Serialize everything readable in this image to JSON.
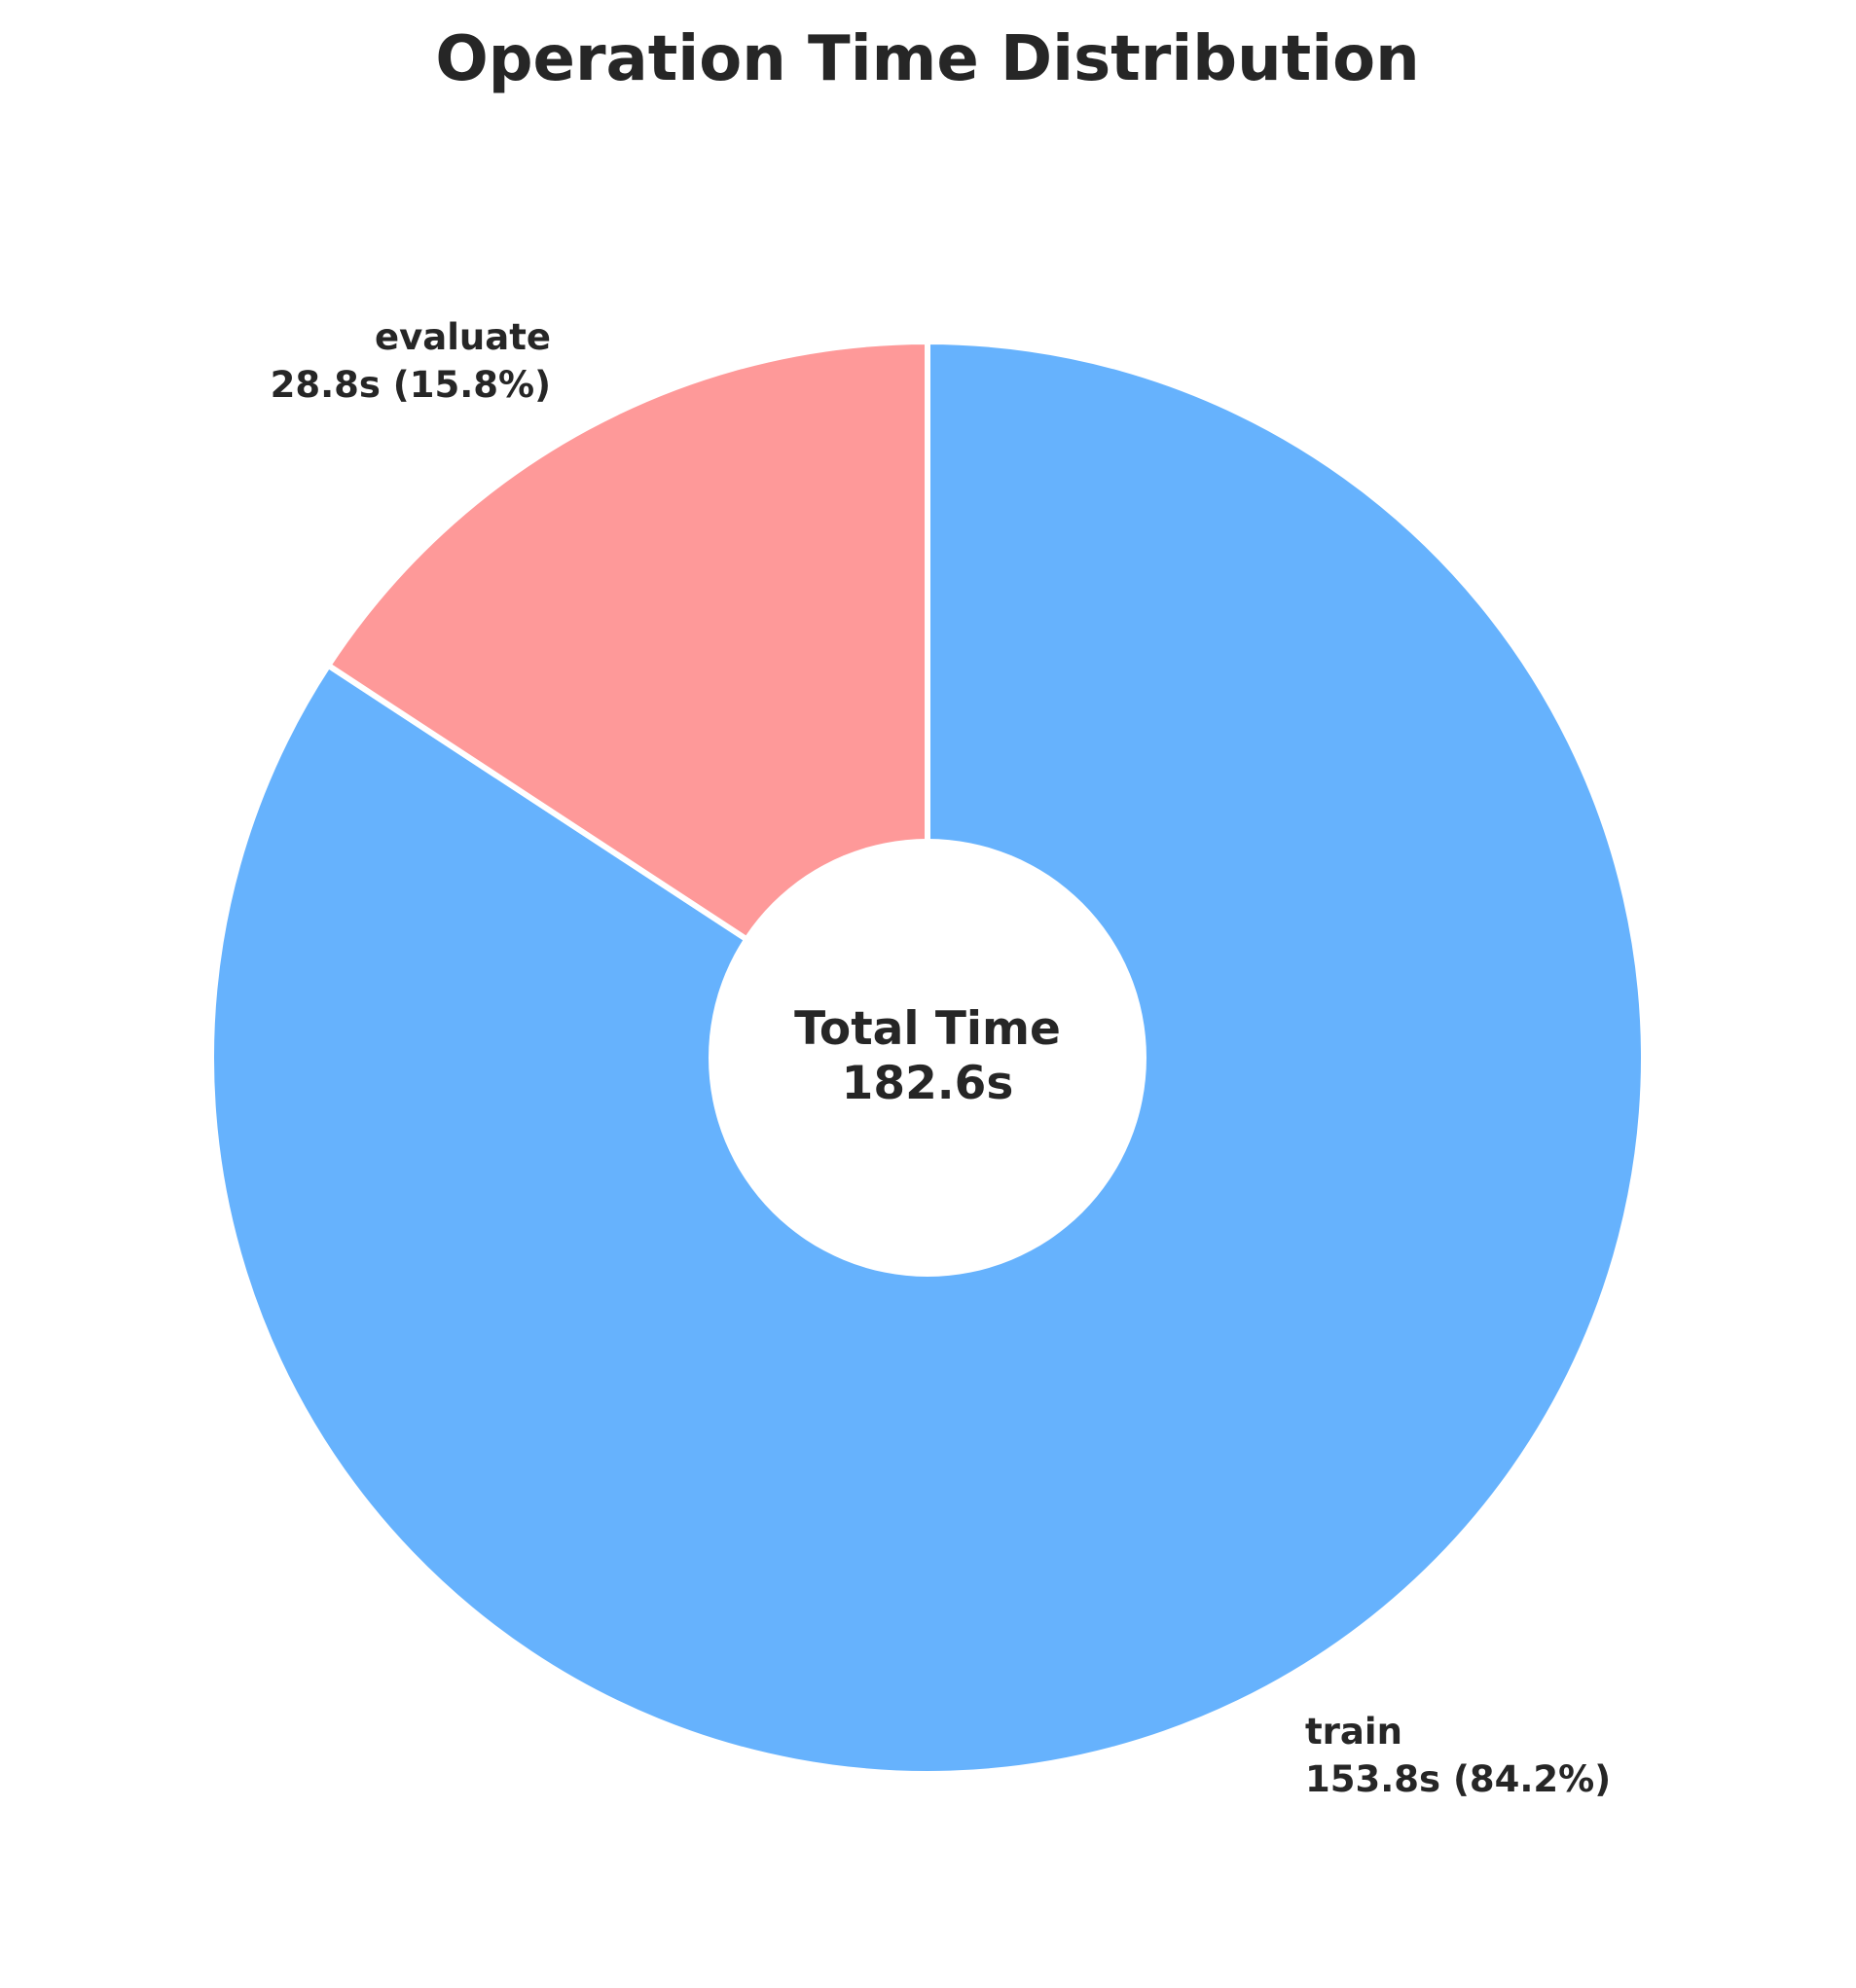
{
  "chart_data": {
    "type": "pie",
    "title": "Operation Time Distribution",
    "donut": true,
    "start_angle_deg": 90,
    "direction": "clockwise",
    "slices": [
      {
        "name": "train",
        "value": 153.8,
        "percent": 84.2,
        "label_name": "train",
        "label_value": "153.8s (84.2%)",
        "color": "#66b2fd"
      },
      {
        "name": "evaluate",
        "value": 28.8,
        "percent": 15.8,
        "label_name": "evaluate",
        "label_value": "28.8s (15.8%)",
        "color": "#fe9999"
      }
    ],
    "center_label": {
      "line1": "Total Time",
      "line2": "182.6s"
    },
    "total": 182.6,
    "slice_edge_color": "#ffffff"
  }
}
